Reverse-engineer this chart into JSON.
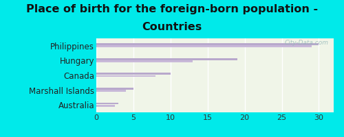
{
  "title_line1": "Place of birth for the foreign-born population -",
  "title_line2": "Countries",
  "categories": [
    "Philippines",
    "Hungary",
    "Canada",
    "Marshall Islands",
    "Australia"
  ],
  "bars1": [
    30,
    19,
    10,
    5,
    3
  ],
  "bars2": [
    29,
    13,
    8,
    4,
    2.5
  ],
  "bar_color1": "#b8a8cc",
  "bar_color2": "#c8b8d8",
  "background_outer": "#00eaea",
  "background_plot_top": "#f0f5e8",
  "background_plot_bottom": "#d8e8d0",
  "xlim": [
    0,
    32
  ],
  "xticks": [
    0,
    5,
    10,
    15,
    20,
    25,
    30
  ],
  "watermark": "City-Data.com",
  "title_fontsize": 11.5,
  "tick_fontsize": 8,
  "label_fontsize": 8.5
}
